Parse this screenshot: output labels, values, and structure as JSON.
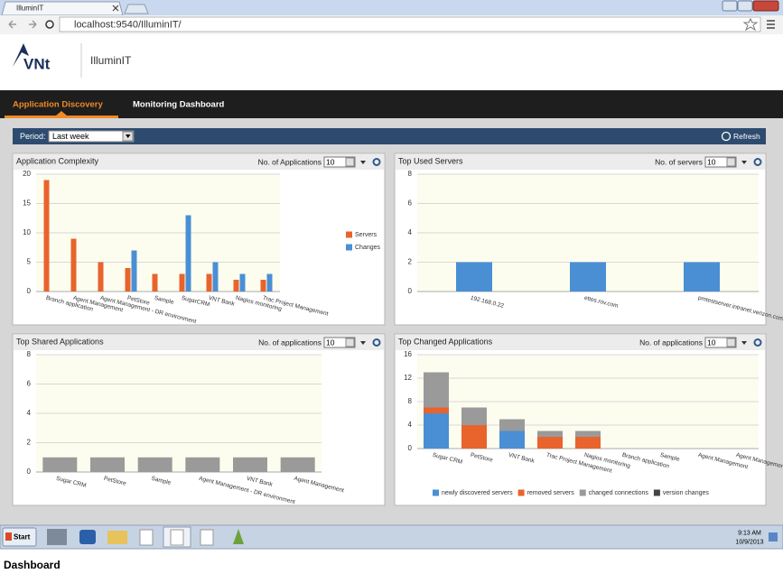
{
  "browser": {
    "tab_title": "IlluminIT",
    "url": "localhost:9540/IlluminIT/"
  },
  "app": {
    "logo": "VNt",
    "name": "IlluminIT",
    "nav": [
      "Application Discovery",
      "Monitoring Dashboard"
    ],
    "period_label": "Period:",
    "period_value": "Last week",
    "refresh": "Refresh"
  },
  "chart_data": [
    {
      "type": "bar",
      "title": "Application Complexity",
      "control_label": "No. of Applications",
      "control_value": "10",
      "categories": [
        "Branch application",
        "Agent Management",
        "Agent Management - DR environment",
        "PetStore",
        "Sample",
        "SugarCRM",
        "VNT Bank",
        "Nagios monitoring",
        "Trac Project Management"
      ],
      "series": [
        {
          "name": "Servers",
          "color": "#e8642c",
          "values": [
            19,
            9,
            5,
            4,
            3,
            3,
            3,
            2,
            2
          ]
        },
        {
          "name": "Changes",
          "color": "#4a8fd4",
          "values": [
            0,
            0,
            0,
            7,
            0,
            13,
            5,
            3,
            3
          ]
        }
      ],
      "ylim": [
        0,
        20
      ],
      "yticks": [
        0,
        5,
        10,
        15,
        20
      ],
      "grid": true,
      "legend": "right"
    },
    {
      "type": "bar",
      "title": "Top Used Servers",
      "control_label": "No. of servers",
      "control_value": "10",
      "categories": [
        "192.168.0.22",
        "ettes.rov.com",
        "pmtestserver.intranet.verizon.com"
      ],
      "values": [
        2,
        2,
        2
      ],
      "color": "#4a8fd4",
      "ylim": [
        0,
        8
      ],
      "yticks": [
        0,
        2,
        4,
        6,
        8
      ],
      "grid": true
    },
    {
      "type": "bar",
      "title": "Top Shared Applications",
      "control_label": "No. of applications",
      "control_value": "10",
      "categories": [
        "Sugar CRM",
        "PetStore",
        "Sample",
        "Agent Management - DR environment",
        "VNT Bank",
        "Agent Management"
      ],
      "values": [
        1,
        1,
        1,
        1,
        1,
        1
      ],
      "color": "#9a9a9a",
      "ylim": [
        0,
        8
      ],
      "yticks": [
        0,
        2,
        4,
        6,
        8
      ],
      "grid": true
    },
    {
      "type": "stacked-bar",
      "title": "Top Changed Applications",
      "control_label": "No. of applications",
      "control_value": "10",
      "categories": [
        "Sugar CRM",
        "PetStore",
        "VNT Bank",
        "Trac Project Management",
        "Nagios monitoring",
        "Branch application",
        "Sample",
        "Agent Management",
        "Agent Management - DR environment"
      ],
      "series": [
        {
          "name": "newly discovered servers",
          "color": "#4a8fd4",
          "values": [
            6,
            0,
            3,
            0,
            0,
            0,
            0,
            0,
            0
          ]
        },
        {
          "name": "removed servers",
          "color": "#e8642c",
          "values": [
            1,
            4,
            0,
            2,
            2,
            0,
            0,
            0,
            0
          ]
        },
        {
          "name": "changed connections",
          "color": "#9a9a9a",
          "values": [
            6,
            3,
            2,
            1,
            1,
            0,
            0,
            0,
            0
          ]
        },
        {
          "name": "version changes",
          "color": "#444444",
          "values": [
            0,
            0,
            0,
            0,
            0,
            0,
            0,
            0,
            0
          ]
        }
      ],
      "ylim": [
        0,
        16
      ],
      "yticks": [
        0,
        4,
        8,
        12,
        16
      ],
      "grid": true,
      "legend": "bottom"
    }
  ],
  "taskbar": {
    "start": "Start",
    "time": "9:13 AM",
    "date": "10/9/2013"
  },
  "caption": "Dashboard"
}
